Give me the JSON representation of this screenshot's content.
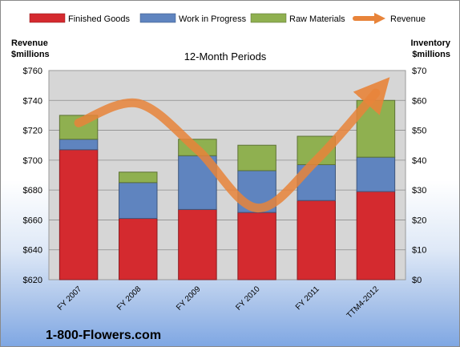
{
  "chart_data": {
    "type": "bar",
    "stacked": true,
    "title": "12-Month Periods",
    "categories": [
      "FY 2007",
      "FY 2008",
      "FY 2009",
      "FY 2010",
      "FY 2011",
      "TTM4-2012"
    ],
    "left_axis": {
      "label_line1": "Revenue",
      "label_line2": "$millions",
      "range": [
        620,
        760
      ],
      "step": 20,
      "tick_format": "$"
    },
    "right_axis": {
      "label_line1": "Inventory",
      "label_line2": "$millions",
      "range": [
        0,
        70
      ],
      "step": 10,
      "tick_format": "$"
    },
    "series": [
      {
        "name": "Finished Goods",
        "axis": "right",
        "color": "#d42a2f",
        "values": [
          43.5,
          20.5,
          23.5,
          22.5,
          26.5,
          29.5
        ]
      },
      {
        "name": "Work in Progress",
        "axis": "right",
        "color": "#5f84bf",
        "values": [
          3.5,
          12,
          18,
          14,
          12,
          11.5
        ]
      },
      {
        "name": "Raw Materials",
        "axis": "right",
        "color": "#8fb050",
        "values": [
          8,
          3.5,
          5.5,
          8.5,
          9.5,
          19
        ]
      },
      {
        "name": "Revenue",
        "axis": "left",
        "type": "line",
        "color": "#e8843a",
        "values": [
          725,
          738,
          707,
          668,
          700,
          745
        ]
      }
    ],
    "legend_position": "top",
    "grid": true,
    "brand": "1-800-Flowers.com"
  }
}
